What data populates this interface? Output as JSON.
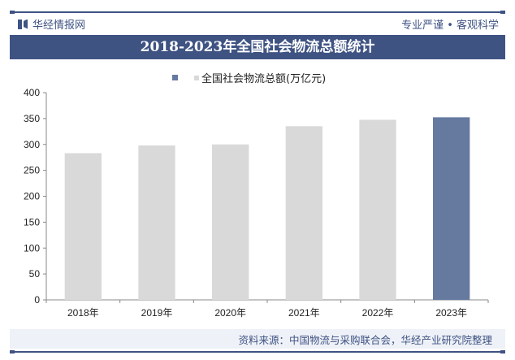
{
  "header": {
    "brand": "华经情报网",
    "slogan": "专业严谨 • 客观科学",
    "title": "2018-2023年全国社会物流总额统计"
  },
  "footer": {
    "source": "资料来源：中国物流与采购联合会，华经产业研究院整理"
  },
  "chart_data": {
    "type": "bar",
    "title": "2018-2023年全国社会物流总额统计",
    "categories": [
      "2018年",
      "2019年",
      "2020年",
      "2021年",
      "2022年",
      "2023年"
    ],
    "series": [
      {
        "name": "全国社会物流总额(万亿元)",
        "values": [
          283.1,
          298.0,
          300.1,
          335.2,
          347.6,
          352.4
        ]
      }
    ],
    "ylim": [
      0,
      400
    ],
    "yticks": [
      0,
      50,
      100,
      150,
      200,
      250,
      300,
      350,
      400
    ],
    "grid": false,
    "legend": "top-center",
    "colors": {
      "default": "#d9d9d9",
      "highlight": "#667aa0"
    },
    "highlight_index": 5
  }
}
